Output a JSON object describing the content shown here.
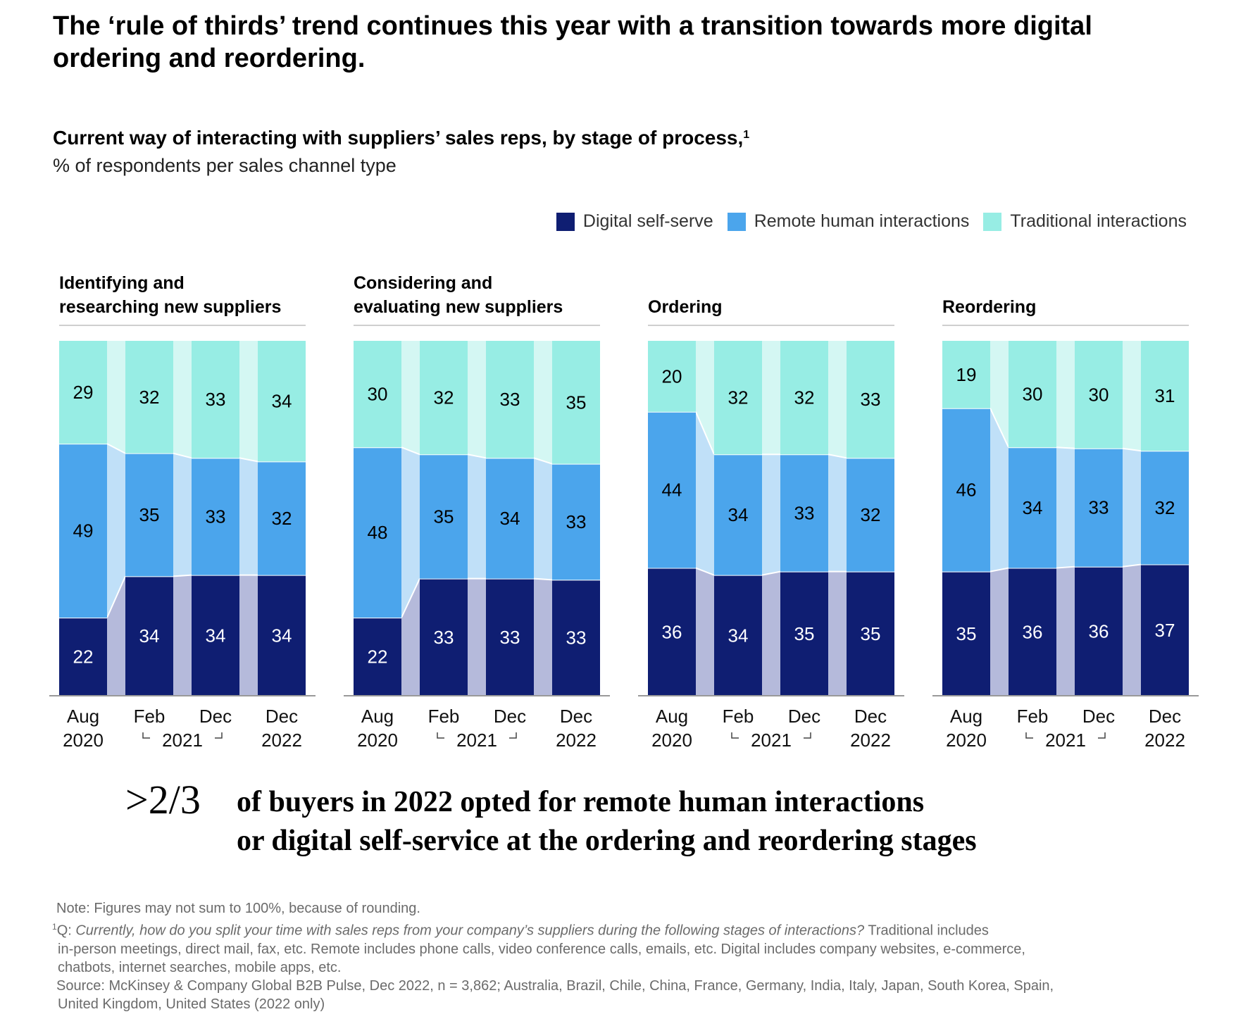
{
  "headline": "The ‘rule of thirds’ trend continues this year with a transition towards more digital ordering and reordering.",
  "subtitle": "Current way of interacting with suppliers’ sales reps, by stage of process,",
  "subtitle_footnote_mark": "1",
  "unit_label": "% of respondents per sales channel type",
  "colors": {
    "digital": "#0f1e72",
    "remote": "#4ba5ec",
    "traditional": "#97ede4",
    "digital_connector": "#b5badb",
    "remote_connector": "#c0e0f8",
    "traditional_connector": "#d4f7f3"
  },
  "legend": [
    {
      "key": "digital",
      "label": "Digital self-serve"
    },
    {
      "key": "remote",
      "label": "Remote human interactions"
    },
    {
      "key": "traditional",
      "label": "Traditional interactions"
    }
  ],
  "chart_data": {
    "type": "bar",
    "stacked": true,
    "title": "Current way of interacting with suppliers’ sales reps, by stage of process",
    "ylabel": "% of respondents per sales channel type",
    "ylim": [
      0,
      100
    ],
    "categories": [
      "Aug 2020",
      "Feb 2021",
      "Dec 2021",
      "Dec 2022"
    ],
    "x_tick_lines": [
      [
        "Aug",
        "2020"
      ],
      [
        "Feb",
        ""
      ],
      [
        "Dec",
        ""
      ],
      [
        "Dec",
        "2022"
      ]
    ],
    "x_group_label": "2021",
    "legend_position": "top-right",
    "panels": [
      {
        "title_lines": [
          "Identifying and",
          "researching new suppliers"
        ],
        "series": [
          {
            "name": "Digital self-serve",
            "key": "digital",
            "values": [
              22,
              34,
              34,
              34
            ]
          },
          {
            "name": "Remote human interactions",
            "key": "remote",
            "values": [
              49,
              35,
              33,
              32
            ]
          },
          {
            "name": "Traditional interactions",
            "key": "traditional",
            "values": [
              29,
              32,
              33,
              34
            ]
          }
        ]
      },
      {
        "title_lines": [
          "Considering and",
          "evaluating new suppliers"
        ],
        "series": [
          {
            "name": "Digital self-serve",
            "key": "digital",
            "values": [
              22,
              33,
              33,
              33
            ]
          },
          {
            "name": "Remote human interactions",
            "key": "remote",
            "values": [
              48,
              35,
              34,
              33
            ]
          },
          {
            "name": "Traditional interactions",
            "key": "traditional",
            "values": [
              30,
              32,
              33,
              35
            ]
          }
        ]
      },
      {
        "title_lines": [
          "Ordering"
        ],
        "series": [
          {
            "name": "Digital self-serve",
            "key": "digital",
            "values": [
              36,
              34,
              35,
              35
            ]
          },
          {
            "name": "Remote human interactions",
            "key": "remote",
            "values": [
              44,
              34,
              33,
              32
            ]
          },
          {
            "name": "Traditional interactions",
            "key": "traditional",
            "values": [
              20,
              32,
              32,
              33
            ]
          }
        ]
      },
      {
        "title_lines": [
          "Reordering"
        ],
        "series": [
          {
            "name": "Digital self-serve",
            "key": "digital",
            "values": [
              35,
              36,
              36,
              37
            ]
          },
          {
            "name": "Remote human interactions",
            "key": "remote",
            "values": [
              46,
              34,
              33,
              32
            ]
          },
          {
            "name": "Traditional interactions",
            "key": "traditional",
            "values": [
              19,
              30,
              30,
              31
            ]
          }
        ]
      }
    ]
  },
  "callout": {
    "big": ">2/3",
    "line1": "of buyers in 2022 opted for remote human interactions",
    "line2": "or digital self-service at the ordering and reordering stages"
  },
  "footnotes": {
    "note": "Note: Figures may not sum to 100%, because of rounding.",
    "q_mark": "1",
    "q_prefix": "Q: ",
    "q_italic": "Currently, how do you split your time with sales reps from your company’s suppliers during the following stages of interactions?",
    "q_rest_1": " Traditional includes",
    "q_line2": "in-person meetings, direct mail, fax, etc. Remote includes phone calls, video conference calls, emails, etc. Digital includes company websites, e-commerce,",
    "q_line3": "chatbots, internet searches, mobile apps, etc.",
    "source_line1": "Source: McKinsey & Company Global B2B Pulse, Dec 2022, n = 3,862; Australia, Brazil, Chile, China, France, Germany, India, Italy, Japan, South Korea, Spain,",
    "source_line2": "United Kingdom, United States (2022 only)"
  }
}
